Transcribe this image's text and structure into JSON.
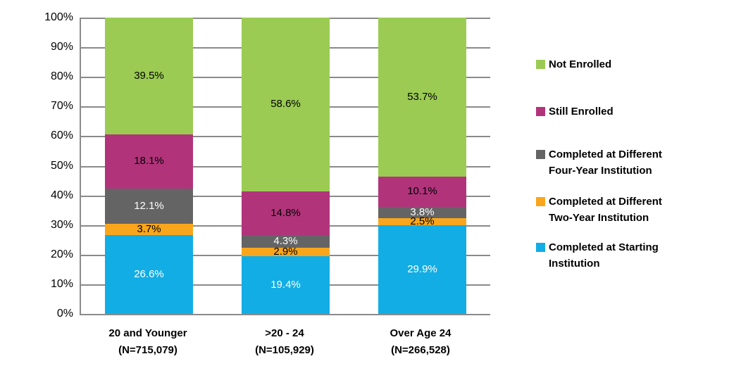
{
  "chart_data": {
    "type": "bar",
    "stacked": true,
    "orientation": "vertical",
    "title": "",
    "xlabel": "",
    "ylabel": "",
    "y_axis": {
      "min": 0,
      "max": 100,
      "step": 10,
      "ticks": [
        "0%",
        "10%",
        "20%",
        "30%",
        "40%",
        "50%",
        "60%",
        "70%",
        "80%",
        "90%",
        "100%"
      ]
    },
    "grid": true,
    "gridline_color": "#8A8A8A",
    "background_color": "#FFFFFF",
    "categories": [
      {
        "label": "20 and Younger",
        "n_label": "(N=715,079)"
      },
      {
        "label": ">20 - 24",
        "n_label": "(N=105,929)"
      },
      {
        "label": "Over Age 24",
        "n_label": "(N=266,528)"
      }
    ],
    "series": [
      {
        "name": "Completed at Starting Institution",
        "color": "#12ADE4",
        "label_color": "#FFFFFF",
        "values": [
          26.6,
          19.4,
          29.9
        ],
        "value_labels": [
          "26.6%",
          "19.4%",
          "29.9%"
        ]
      },
      {
        "name": "Completed at Different Two-Year Institution",
        "color": "#F9A61C",
        "label_color": "#000000",
        "values": [
          3.7,
          2.9,
          2.5
        ],
        "value_labels": [
          "3.7%",
          "2.9%",
          "2.5%"
        ]
      },
      {
        "name": "Completed at Different Four-Year Institution",
        "color": "#646464",
        "label_color": "#FFFFFF",
        "values": [
          12.1,
          4.3,
          3.8
        ],
        "value_labels": [
          "12.1%",
          "4.3%",
          "3.8%"
        ]
      },
      {
        "name": "Still Enrolled",
        "color": "#B1347B",
        "label_color": "#000000",
        "values": [
          18.1,
          14.8,
          10.1
        ],
        "value_labels": [
          "18.1%",
          "14.8%",
          "10.1%"
        ]
      },
      {
        "name": "Not Enrolled",
        "color": "#9BCB53",
        "label_color": "#000000",
        "values": [
          39.5,
          58.6,
          53.7
        ],
        "value_labels": [
          "39.5%",
          "58.6%",
          "53.7%"
        ]
      }
    ],
    "legend": {
      "position": "right",
      "entries": [
        {
          "series": "Not Enrolled",
          "color": "#9BCB53",
          "lines": [
            "Not Enrolled"
          ]
        },
        {
          "series": "Still Enrolled",
          "color": "#B1347B",
          "lines": [
            "Still Enrolled"
          ]
        },
        {
          "series": "Completed at Different Four-Year Institution",
          "color": "#646464",
          "lines": [
            "Completed at Different",
            "Four-Year Institution"
          ]
        },
        {
          "series": "Completed at Different Two-Year Institution",
          "color": "#F9A61C",
          "lines": [
            "Completed at Different",
            "Two-Year Institution"
          ]
        },
        {
          "series": "Completed at Starting Institution",
          "color": "#12ADE4",
          "lines": [
            "Completed at Starting",
            "Institution"
          ]
        }
      ]
    }
  }
}
